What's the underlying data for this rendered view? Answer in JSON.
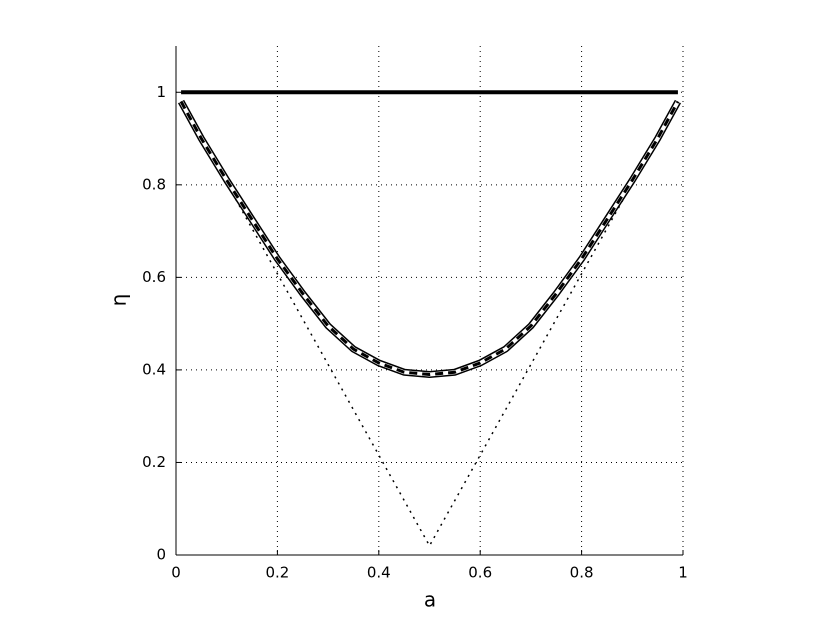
{
  "chart_data": {
    "type": "line",
    "xlabel": "a",
    "ylabel": "η",
    "xlim": [
      0,
      1
    ],
    "ylim": [
      0,
      1.1
    ],
    "xticks": [
      0,
      0.2,
      0.4,
      0.6,
      0.8,
      1
    ],
    "yticks": [
      0,
      0.2,
      0.4,
      0.6,
      0.8,
      1
    ],
    "grid": true,
    "series": [
      {
        "color": "#000000",
        "line_width": 4,
        "dash": "none",
        "x": [
          0.01,
          0.99
        ],
        "values": [
          1,
          1
        ]
      },
      {
        "color": "#000000",
        "line_width": 1.5,
        "dash": "2,5",
        "x": [
          0.01,
          0.5,
          0.99
        ],
        "values": [
          0.98,
          0.02,
          0.98
        ]
      },
      {
        "color": "#000000",
        "line_width": 7,
        "dash": "none",
        "x": [
          0.01,
          0.05,
          0.1,
          0.15,
          0.2,
          0.25,
          0.3,
          0.35,
          0.4,
          0.45,
          0.5,
          0.55,
          0.6,
          0.65,
          0.7,
          0.75,
          0.8,
          0.85,
          0.9,
          0.95,
          0.99
        ],
        "values": [
          0.98,
          0.9,
          0.81,
          0.725,
          0.64,
          0.565,
          0.495,
          0.445,
          0.415,
          0.395,
          0.39,
          0.395,
          0.415,
          0.445,
          0.495,
          0.565,
          0.64,
          0.725,
          0.81,
          0.9,
          0.98
        ]
      },
      {
        "color": "#ffffff",
        "line_width": 4,
        "dash": "none",
        "x": [
          0.01,
          0.05,
          0.1,
          0.15,
          0.2,
          0.25,
          0.3,
          0.35,
          0.4,
          0.45,
          0.5,
          0.55,
          0.6,
          0.65,
          0.7,
          0.75,
          0.8,
          0.85,
          0.9,
          0.95,
          0.99
        ],
        "values": [
          0.98,
          0.9,
          0.81,
          0.725,
          0.64,
          0.565,
          0.495,
          0.445,
          0.415,
          0.395,
          0.39,
          0.395,
          0.415,
          0.445,
          0.495,
          0.565,
          0.64,
          0.725,
          0.81,
          0.9,
          0.98
        ]
      },
      {
        "color": "#000000",
        "line_width": 3,
        "dash": "8,5",
        "x": [
          0.01,
          0.05,
          0.1,
          0.15,
          0.2,
          0.25,
          0.3,
          0.35,
          0.4,
          0.45,
          0.5,
          0.55,
          0.6,
          0.65,
          0.7,
          0.75,
          0.8,
          0.85,
          0.9,
          0.95,
          0.99
        ],
        "values": [
          0.98,
          0.9,
          0.81,
          0.725,
          0.64,
          0.565,
          0.495,
          0.445,
          0.415,
          0.395,
          0.39,
          0.395,
          0.415,
          0.445,
          0.495,
          0.565,
          0.64,
          0.725,
          0.81,
          0.9,
          0.98
        ]
      }
    ]
  }
}
